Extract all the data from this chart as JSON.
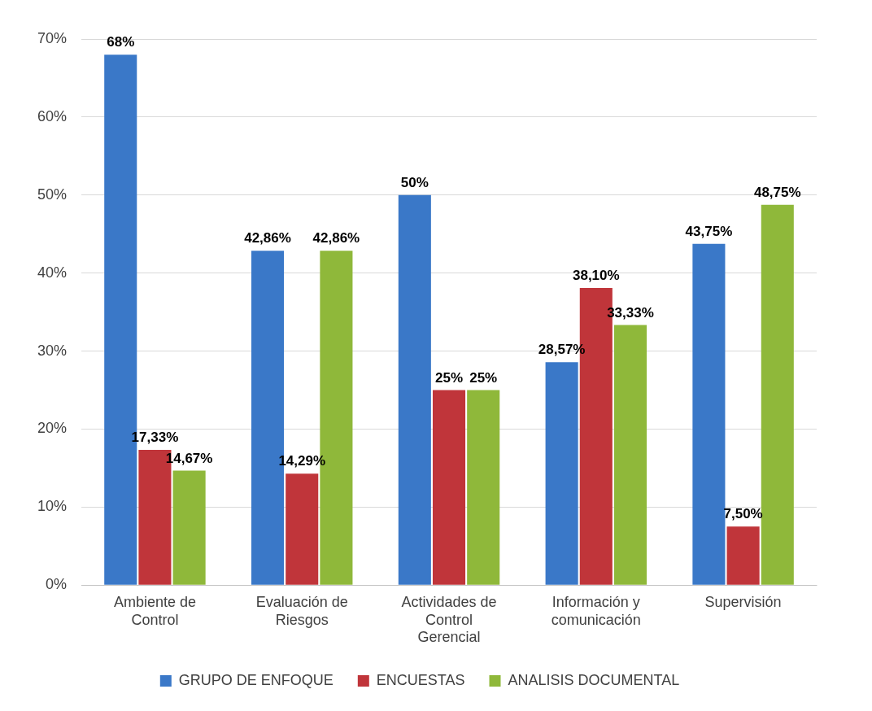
{
  "chart_data": {
    "type": "bar",
    "categories": [
      "Ambiente de Control",
      "Evaluación de Riesgos",
      "Actividades de Control Gerencial",
      "Información y comunicación",
      "Supervisión"
    ],
    "series": [
      {
        "name": "GRUPO DE ENFOQUE",
        "color": "#3a78c8",
        "values": [
          68,
          42.86,
          50,
          28.57,
          43.75
        ],
        "value_labels": [
          "68%",
          "42,86%",
          "50%",
          "28,57%",
          "43,75%"
        ]
      },
      {
        "name": "ENCUESTAS",
        "color": "#c0353a",
        "values": [
          17.33,
          14.29,
          25,
          38.1,
          7.5
        ],
        "value_labels": [
          "17,33%",
          "14,29%",
          "25%",
          "38,10%",
          "7,50%"
        ]
      },
      {
        "name": "ANALISIS DOCUMENTAL",
        "color": "#8fb83a",
        "values": [
          14.67,
          42.86,
          25,
          33.33,
          48.75
        ],
        "value_labels": [
          "14,67%",
          "42,86%",
          "25%",
          "33,33%",
          "48,75%"
        ]
      }
    ],
    "ylim": [
      0,
      70
    ],
    "yticks": [
      {
        "value": 0,
        "label": "0%"
      },
      {
        "value": 10,
        "label": "10%"
      },
      {
        "value": 20,
        "label": "20%"
      },
      {
        "value": 30,
        "label": "30%"
      },
      {
        "value": 40,
        "label": "40%"
      },
      {
        "value": 50,
        "label": "50%"
      },
      {
        "value": 60,
        "label": "60%"
      },
      {
        "value": 70,
        "label": "70%"
      }
    ],
    "grid": "y",
    "legend": "bottom"
  }
}
